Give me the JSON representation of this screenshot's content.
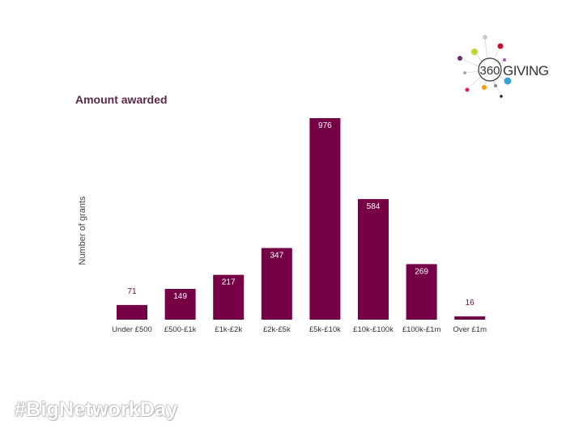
{
  "logo": {
    "text_number": "360",
    "text_word": "GIVING"
  },
  "hashtag": "#BigNetworkDay",
  "colors": {
    "bar": "#750046",
    "title": "#5a2848"
  },
  "chart_data": {
    "type": "bar",
    "title": "Amount awarded",
    "xlabel": "",
    "ylabel": "Number of grants",
    "categories": [
      "Under £500",
      "£500-£1k",
      "£1k-£2k",
      "£2k-£5k",
      "£5k-£10k",
      "£10k-£100k",
      "£100k-£1m",
      "Over £1m"
    ],
    "values": [
      71,
      149,
      217,
      347,
      976,
      584,
      269,
      16
    ],
    "ylim": [
      0,
      976
    ],
    "grid": false,
    "legend": "none"
  }
}
